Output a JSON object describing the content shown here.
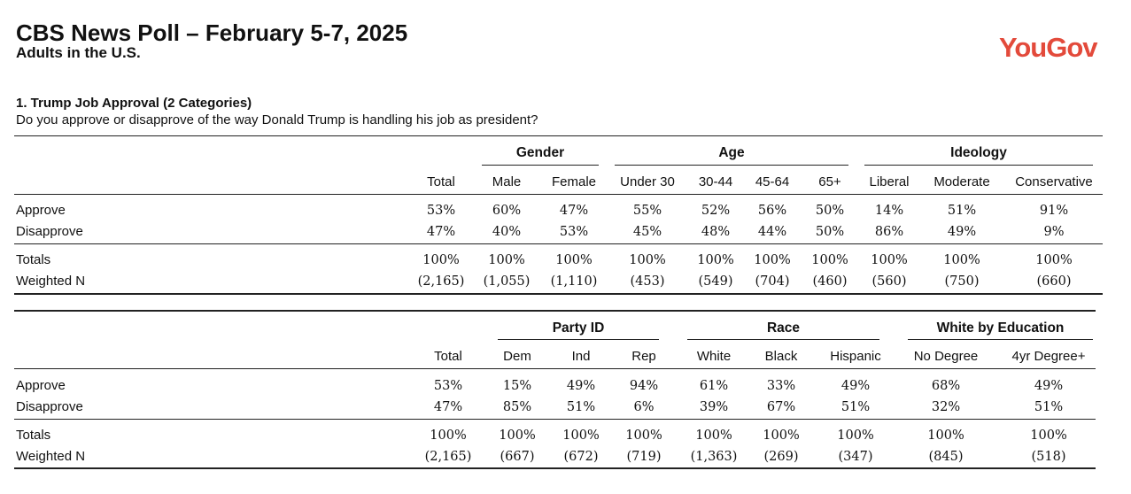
{
  "header": {
    "title": "CBS News Poll – February 5-7, 2025",
    "subtitle": "Adults in the U.S.",
    "logo": "YouGov"
  },
  "question": {
    "title": "1. Trump Job Approval (2 Categories)",
    "text": "Do you approve or disapprove of the way Donald Trump is handling his job as president?"
  },
  "table1": {
    "groups": [
      "Gender",
      "Age",
      "Ideology"
    ],
    "columns": [
      "Total",
      "Male",
      "Female",
      "Under 30",
      "30-44",
      "45-64",
      "65+",
      "Liberal",
      "Moderate",
      "Conservative"
    ],
    "rows": [
      {
        "label": "Approve",
        "values": [
          "53%",
          "60%",
          "47%",
          "55%",
          "52%",
          "56%",
          "50%",
          "14%",
          "51%",
          "91%"
        ]
      },
      {
        "label": "Disapprove",
        "values": [
          "47%",
          "40%",
          "53%",
          "45%",
          "48%",
          "44%",
          "50%",
          "86%",
          "49%",
          "9%"
        ]
      },
      {
        "label": "Totals",
        "values": [
          "100%",
          "100%",
          "100%",
          "100%",
          "100%",
          "100%",
          "100%",
          "100%",
          "100%",
          "100%"
        ]
      },
      {
        "label": "Weighted N",
        "values": [
          "(2,165)",
          "(1,055)",
          "(1,110)",
          "(453)",
          "(549)",
          "(704)",
          "(460)",
          "(560)",
          "(750)",
          "(660)"
        ]
      }
    ]
  },
  "table2": {
    "groups": [
      "Party ID",
      "Race",
      "White by Education"
    ],
    "columns": [
      "Total",
      "Dem",
      "Ind",
      "Rep",
      "White",
      "Black",
      "Hispanic",
      "No Degree",
      "4yr Degree+"
    ],
    "rows": [
      {
        "label": "Approve",
        "values": [
          "53%",
          "15%",
          "49%",
          "94%",
          "61%",
          "33%",
          "49%",
          "68%",
          "49%"
        ]
      },
      {
        "label": "Disapprove",
        "values": [
          "47%",
          "85%",
          "51%",
          "6%",
          "39%",
          "67%",
          "51%",
          "32%",
          "51%"
        ]
      },
      {
        "label": "Totals",
        "values": [
          "100%",
          "100%",
          "100%",
          "100%",
          "100%",
          "100%",
          "100%",
          "100%",
          "100%"
        ]
      },
      {
        "label": "Weighted N",
        "values": [
          "(2,165)",
          "(667)",
          "(672)",
          "(719)",
          "(1,363)",
          "(269)",
          "(347)",
          "(845)",
          "(518)"
        ]
      }
    ]
  }
}
